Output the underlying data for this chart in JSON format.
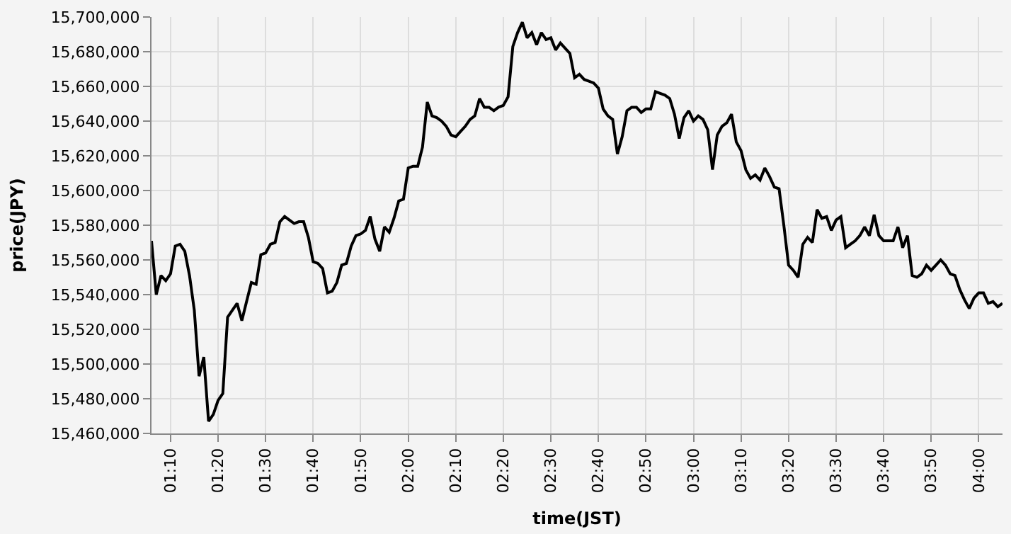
{
  "chart_data": {
    "type": "line",
    "xlabel": "time(JST)",
    "ylabel": "price(JPY)",
    "x": [
      1.1,
      1.1167,
      1.1333,
      1.15,
      1.1667,
      1.1833,
      1.2,
      1.2167,
      1.2333,
      1.25,
      1.2667,
      1.2833,
      1.3,
      1.3167,
      1.3333,
      1.35,
      1.3667,
      1.3833,
      1.4,
      1.4167,
      1.4333,
      1.45,
      1.4667,
      1.4833,
      1.5,
      1.5167,
      1.5333,
      1.55,
      1.5667,
      1.5833,
      1.6,
      1.6167,
      1.6333,
      1.65,
      1.6667,
      1.6833,
      1.7,
      1.7167,
      1.7333,
      1.75,
      1.7667,
      1.7833,
      1.8,
      1.8167,
      1.8333,
      1.85,
      1.8667,
      1.8833,
      1.9,
      1.9167,
      1.9333,
      1.95,
      1.9667,
      1.9833,
      2,
      2.0167,
      2.0333,
      2.05,
      2.0667,
      2.0833,
      2.1,
      2.1167,
      2.1333,
      2.15,
      2.1667,
      2.1833,
      2.2,
      2.2167,
      2.2333,
      2.25,
      2.2667,
      2.2833,
      2.3,
      2.3167,
      2.3333,
      2.35,
      2.3667,
      2.3833,
      2.4,
      2.4167,
      2.4333,
      2.45,
      2.4667,
      2.4833,
      2.5,
      2.5167,
      2.5333,
      2.55,
      2.5667,
      2.5833,
      2.6,
      2.6167,
      2.6333,
      2.65,
      2.6667,
      2.6833,
      2.7,
      2.7167,
      2.7333,
      2.75,
      2.7667,
      2.7833,
      2.8,
      2.8167,
      2.8333,
      2.85,
      2.8667,
      2.8833,
      2.9,
      2.9167,
      2.9333,
      2.95,
      2.9667,
      2.9833,
      3,
      3.0167,
      3.0333,
      3.05,
      3.0667,
      3.0833,
      3.1,
      3.1167,
      3.1333,
      3.15,
      3.1667,
      3.1833,
      3.2,
      3.2167,
      3.2333,
      3.25,
      3.2667,
      3.2833,
      3.3,
      3.3167,
      3.3333,
      3.35,
      3.3667,
      3.3833,
      3.4,
      3.4167,
      3.4333,
      3.45,
      3.4667,
      3.4833,
      3.5,
      3.5167,
      3.5333,
      3.55,
      3.5667,
      3.5833,
      3.6,
      3.6167,
      3.6333,
      3.65,
      3.6667,
      3.6833,
      3.7,
      3.7167,
      3.7333,
      3.75,
      3.7667,
      3.7833,
      3.8,
      3.8167,
      3.8333,
      3.85,
      3.8667,
      3.8833,
      3.9,
      3.9167,
      3.9333,
      3.95,
      3.9667,
      3.9833,
      4,
      4.0167,
      4.0333,
      4.05,
      4.0667,
      4.0833
    ],
    "series": [
      {
        "color": "#000000",
        "values": [
          15571000,
          15540000,
          15551000,
          15548000,
          15552000,
          15568000,
          15569000,
          15565000,
          15551000,
          15531000,
          15493000,
          15504000,
          15467000,
          15471000,
          15479000,
          15483000,
          15527000,
          15531000,
          15535000,
          15525000,
          15536000,
          15547000,
          15546000,
          15563000,
          15564000,
          15569000,
          15570000,
          15582000,
          15585000,
          15583000,
          15581000,
          15582000,
          15582000,
          15573000,
          15559000,
          15558000,
          15555000,
          15541000,
          15542000,
          15547000,
          15557000,
          15558000,
          15568000,
          15574000,
          15575000,
          15577000,
          15585000,
          15572000,
          15565000,
          15579000,
          15576000,
          15584000,
          15594000,
          15595000,
          15613000,
          15614000,
          15614000,
          15625000,
          15651000,
          15643000,
          15642000,
          15640000,
          15637000,
          15632000,
          15631000,
          15634000,
          15637000,
          15641000,
          15643000,
          15653000,
          15648000,
          15648000,
          15646000,
          15648000,
          15649000,
          15654000,
          15683000,
          15691000,
          15697000,
          15688000,
          15691000,
          15684000,
          15691000,
          15687000,
          15688000,
          15681000,
          15685000,
          15682000,
          15679000,
          15665000,
          15667000,
          15664000,
          15663000,
          15662000,
          15659000,
          15647000,
          15643000,
          15641000,
          15621000,
          15631000,
          15646000,
          15648000,
          15648000,
          15645000,
          15647000,
          15647000,
          15657000,
          15656000,
          15655000,
          15653000,
          15644000,
          15630000,
          15642000,
          15646000,
          15640000,
          15643000,
          15641000,
          15635000,
          15612000,
          15632000,
          15637000,
          15639000,
          15644000,
          15628000,
          15623000,
          15612000,
          15607000,
          15609000,
          15606000,
          15613000,
          15608000,
          15602000,
          15601000,
          15580000,
          15557000,
          15554000,
          15550000,
          15569000,
          15573000,
          15570000,
          15589000,
          15584000,
          15585000,
          15577000,
          15583000,
          15585000,
          15567000,
          15569000,
          15571000,
          15574000,
          15579000,
          15574000,
          15586000,
          15574000,
          15571000,
          15571000,
          15571000,
          15579000,
          15567000,
          15574000,
          15551000,
          15550000,
          15552000,
          15557000,
          15554000,
          15557000,
          15560000,
          15557000,
          15552000,
          15551000,
          15543000,
          15537000,
          15532000,
          15538000,
          15541000,
          15541000,
          15535000,
          15536000,
          15533000,
          15535000
        ]
      }
    ],
    "xlim": [
      1.1,
      4.0833
    ],
    "xticks": [
      {
        "value": 1.1667,
        "label": "01:10"
      },
      {
        "value": 1.3333,
        "label": "01:20"
      },
      {
        "value": 1.5,
        "label": "01:30"
      },
      {
        "value": 1.6667,
        "label": "01:40"
      },
      {
        "value": 1.8333,
        "label": "01:50"
      },
      {
        "value": 2,
        "label": "02:00"
      },
      {
        "value": 2.1667,
        "label": "02:10"
      },
      {
        "value": 2.3333,
        "label": "02:20"
      },
      {
        "value": 2.5,
        "label": "02:30"
      },
      {
        "value": 2.6667,
        "label": "02:40"
      },
      {
        "value": 2.8333,
        "label": "02:50"
      },
      {
        "value": 3,
        "label": "03:00"
      },
      {
        "value": 3.1667,
        "label": "03:10"
      },
      {
        "value": 3.3333,
        "label": "03:20"
      },
      {
        "value": 3.5,
        "label": "03:30"
      },
      {
        "value": 3.6667,
        "label": "03:40"
      },
      {
        "value": 3.8333,
        "label": "03:50"
      },
      {
        "value": 4,
        "label": "04:00"
      }
    ],
    "ylim": [
      15460000,
      15700000
    ],
    "yticks": [
      {
        "value": 15460000,
        "label": "15,460,000"
      },
      {
        "value": 15480000,
        "label": "15,480,000"
      },
      {
        "value": 15500000,
        "label": "15,500,000"
      },
      {
        "value": 15520000,
        "label": "15,520,000"
      },
      {
        "value": 15540000,
        "label": "15,540,000"
      },
      {
        "value": 15560000,
        "label": "15,560,000"
      },
      {
        "value": 15580000,
        "label": "15,580,000"
      },
      {
        "value": 15600000,
        "label": "15,600,000"
      },
      {
        "value": 15620000,
        "label": "15,620,000"
      },
      {
        "value": 15640000,
        "label": "15,640,000"
      },
      {
        "value": 15660000,
        "label": "15,660,000"
      },
      {
        "value": 15680000,
        "label": "15,680,000"
      },
      {
        "value": 15700000,
        "label": "15,700,000"
      }
    ],
    "grid": true,
    "marker": "none",
    "line_style": "solid"
  }
}
